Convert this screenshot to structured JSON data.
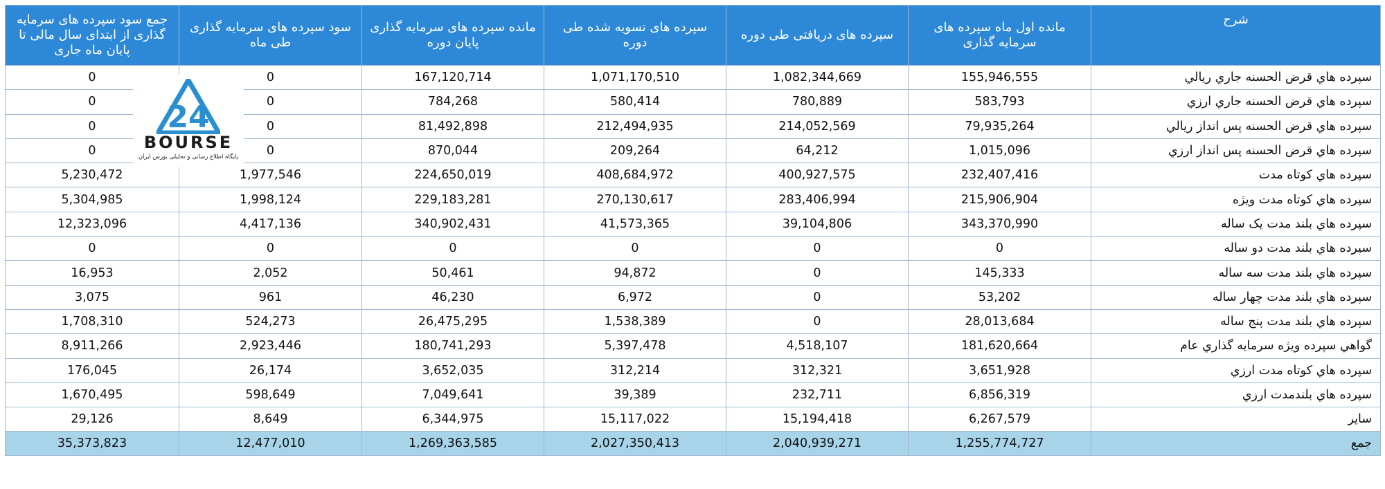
{
  "headers": {
    "description": "شرح",
    "opening_balance": "مانده اول ماه سپرده های سرمایه گذاری",
    "received": "سپرده های دریافتی طی دوره",
    "settled": "سپرده های تسویه شده طی دوره",
    "closing_balance": "مانده سپرده های سرمایه گذاری پایان دوره",
    "monthly_profit": "سود سپرده های سرمایه گذاری طی ماه",
    "ytd_profit": "جمع سود سپرده های سرمایه گذاری از ابتدای سال مالی تا پایان ماه جاری"
  },
  "rows": [
    {
      "description": "سپرده هاي قرض الحسنه جاري ريالي",
      "opening_balance": "155,946,555",
      "received": "1,082,344,669",
      "settled": "1,071,170,510",
      "closing_balance": "167,120,714",
      "monthly_profit": "0",
      "ytd_profit": "0"
    },
    {
      "description": "سپرده هاي قرض الحسنه جاري ارزي",
      "opening_balance": "583,793",
      "received": "780,889",
      "settled": "580,414",
      "closing_balance": "784,268",
      "monthly_profit": "0",
      "ytd_profit": "0"
    },
    {
      "description": "سپرده هاي قرض الحسنه پس انداز ريالي",
      "opening_balance": "79,935,264",
      "received": "214,052,569",
      "settled": "212,494,935",
      "closing_balance": "81,492,898",
      "monthly_profit": "0",
      "ytd_profit": "0"
    },
    {
      "description": "سپرده هاي قرض الحسنه پس انداز ارزي",
      "opening_balance": "1,015,096",
      "received": "64,212",
      "settled": "209,264",
      "closing_balance": "870,044",
      "monthly_profit": "0",
      "ytd_profit": "0"
    },
    {
      "description": "سپرده هاي کوتاه مدت",
      "opening_balance": "232,407,416",
      "received": "400,927,575",
      "settled": "408,684,972",
      "closing_balance": "224,650,019",
      "monthly_profit": "1,977,546",
      "ytd_profit": "5,230,472"
    },
    {
      "description": "سپرده هاي کوتاه مدت ويژه",
      "opening_balance": "215,906,904",
      "received": "283,406,994",
      "settled": "270,130,617",
      "closing_balance": "229,183,281",
      "monthly_profit": "1,998,124",
      "ytd_profit": "5,304,985"
    },
    {
      "description": "سپرده هاي بلند مدت يک ساله",
      "opening_balance": "343,370,990",
      "received": "39,104,806",
      "settled": "41,573,365",
      "closing_balance": "340,902,431",
      "monthly_profit": "4,417,136",
      "ytd_profit": "12,323,096"
    },
    {
      "description": "سپرده هاي بلند مدت دو ساله",
      "opening_balance": "0",
      "received": "0",
      "settled": "0",
      "closing_balance": "0",
      "monthly_profit": "0",
      "ytd_profit": "0"
    },
    {
      "description": "سپرده هاي بلند مدت سه ساله",
      "opening_balance": "145,333",
      "received": "0",
      "settled": "94,872",
      "closing_balance": "50,461",
      "monthly_profit": "2,052",
      "ytd_profit": "16,953"
    },
    {
      "description": "سپرده هاي بلند مدت چهار ساله",
      "opening_balance": "53,202",
      "received": "0",
      "settled": "6,972",
      "closing_balance": "46,230",
      "monthly_profit": "961",
      "ytd_profit": "3,075"
    },
    {
      "description": "سپرده هاي بلند مدت پنج ساله",
      "opening_balance": "28,013,684",
      "received": "0",
      "settled": "1,538,389",
      "closing_balance": "26,475,295",
      "monthly_profit": "524,273",
      "ytd_profit": "1,708,310"
    },
    {
      "description": "گواهي سپرده ويژه سرمايه گذاري عام",
      "opening_balance": "181,620,664",
      "received": "4,518,107",
      "settled": "5,397,478",
      "closing_balance": "180,741,293",
      "monthly_profit": "2,923,446",
      "ytd_profit": "8,911,266"
    },
    {
      "description": "سپرده هاي کوتاه مدت ارزي",
      "opening_balance": "3,651,928",
      "received": "312,321",
      "settled": "312,214",
      "closing_balance": "3,652,035",
      "monthly_profit": "26,174",
      "ytd_profit": "176,045"
    },
    {
      "description": "سپرده هاي بلندمدت ارزي",
      "opening_balance": "6,856,319",
      "received": "232,711",
      "settled": "39,389",
      "closing_balance": "7,049,641",
      "monthly_profit": "598,649",
      "ytd_profit": "1,670,495"
    },
    {
      "description": "ساير",
      "opening_balance": "6,267,579",
      "received": "15,194,418",
      "settled": "15,117,022",
      "closing_balance": "6,344,975",
      "monthly_profit": "8,649",
      "ytd_profit": "29,126"
    }
  ],
  "total": {
    "description": "جمع",
    "opening_balance": "1,255,774,727",
    "received": "2,040,939,271",
    "settled": "2,027,350,413",
    "closing_balance": "1,269,363,585",
    "monthly_profit": "12,477,010",
    "ytd_profit": "35,373,823"
  },
  "watermark": {
    "logo_mark": "24",
    "logo_word": "BOURSE",
    "logo_tagline": "پایگاه اطلاع رسانی و تحلیلی بورس ایران",
    "icon": "bourse24-logo-icon"
  },
  "colors": {
    "header_bg": "#2e88d8",
    "header_text": "#ffffff",
    "total_row_bg": "#a8d4ea",
    "border": "#9fb6cf",
    "logo_blue": "#2a8fd0"
  }
}
